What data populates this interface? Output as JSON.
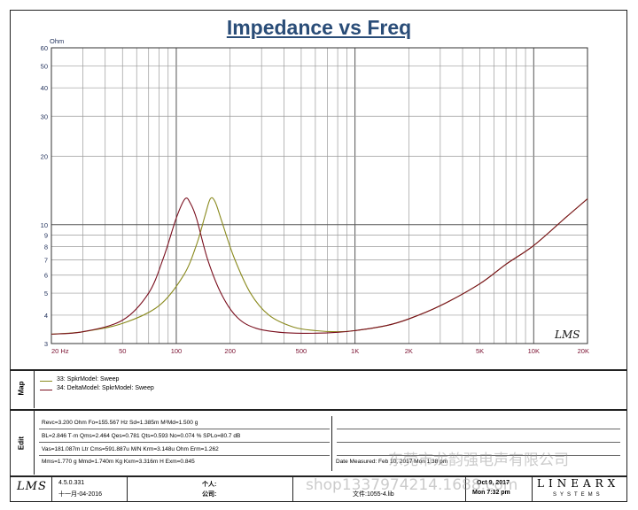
{
  "chart_data": {
    "type": "line",
    "title": "Impedance vs Freq",
    "ylabel_unit": "Ohm",
    "x_scale": "log",
    "y_scale": "log",
    "xlim": [
      20,
      20000
    ],
    "ylim": [
      3,
      60
    ],
    "x_ticks": [
      {
        "v": 20,
        "t": "20 Hz"
      },
      {
        "v": 50,
        "t": "50"
      },
      {
        "v": 100,
        "t": "100"
      },
      {
        "v": 200,
        "t": "200"
      },
      {
        "v": 500,
        "t": "500"
      },
      {
        "v": 1000,
        "t": "1K"
      },
      {
        "v": 2000,
        "t": "2K"
      },
      {
        "v": 5000,
        "t": "5K"
      },
      {
        "v": 10000,
        "t": "10K"
      },
      {
        "v": 20000,
        "t": "20K"
      }
    ],
    "y_ticks": [
      {
        "v": 60,
        "t": "60"
      },
      {
        "v": 50,
        "t": "50"
      },
      {
        "v": 40,
        "t": "40"
      },
      {
        "v": 30,
        "t": "30"
      },
      {
        "v": 20,
        "t": "20"
      },
      {
        "v": 10,
        "t": "10"
      },
      {
        "v": 9,
        "t": "9"
      },
      {
        "v": 8,
        "t": "8"
      },
      {
        "v": 7,
        "t": "7"
      },
      {
        "v": 6,
        "t": "6"
      },
      {
        "v": 5,
        "t": "5"
      },
      {
        "v": 4,
        "t": "4"
      },
      {
        "v": 3,
        "t": "3"
      }
    ],
    "grid": true,
    "series": [
      {
        "name": "33: SpkrModel: Sweep",
        "color": "#8a8a1e",
        "x": [
          20,
          30,
          50,
          80,
          110,
          130,
          145,
          155,
          165,
          180,
          210,
          260,
          330,
          450,
          600,
          800,
          1000,
          1500,
          2000,
          3000,
          5000,
          7000,
          10000,
          15000,
          20000
        ],
        "y": [
          3.3,
          3.38,
          3.68,
          4.4,
          6.0,
          8.2,
          11.0,
          13.0,
          12.6,
          10.3,
          7.2,
          5.0,
          4.0,
          3.55,
          3.42,
          3.38,
          3.42,
          3.6,
          3.85,
          4.4,
          5.5,
          6.7,
          8.1,
          10.7,
          13.0
        ]
      },
      {
        "name": "34: DeltaModel: SpkrModel: Sweep",
        "color": "#7a0f1e",
        "x": [
          20,
          30,
          50,
          70,
          85,
          100,
          112,
          120,
          130,
          150,
          180,
          220,
          280,
          400,
          600,
          800,
          1000,
          1500,
          2000,
          3000,
          5000,
          7000,
          10000,
          15000,
          20000
        ],
        "y": [
          3.3,
          3.38,
          3.8,
          5.0,
          7.2,
          10.7,
          13.0,
          12.4,
          10.6,
          7.0,
          4.9,
          3.9,
          3.5,
          3.35,
          3.33,
          3.36,
          3.42,
          3.6,
          3.85,
          4.4,
          5.5,
          6.7,
          8.1,
          10.7,
          13.0
        ]
      }
    ]
  },
  "watermark_plot": "LMS",
  "map": {
    "label": "Map",
    "items": [
      {
        "text": "33: SpkrModel: Sweep",
        "color": "#8a8a1e"
      },
      {
        "text": "34: DeltaModel: SpkrModel: Sweep",
        "color": "#7a0f1e"
      }
    ]
  },
  "params": {
    "label": "Edit",
    "line1": "Revc=3.200 Ohm  Fo=155.567 Hz  Sd=1.385m M²Md=1.500 g",
    "line2": "BL=2.846 T·m  Qms=2.464  Qes=0.781  Qts=0.593  No=0.074 %  SPLo=80.7 dB",
    "line3": "Vas=181.087m Ltr  Cms=591.887u M/N  Krm=3.148u Ohm  Erm=1.262",
    "line4": "Mms=1.770 g  Mmd=1.740m Kg  Kxm=3.316m H  Exm=0.845",
    "date_measured": "Date Measured: Feb 10, 2017  Mon  1:38 pm"
  },
  "footer": {
    "logo": "LMS",
    "version": "4.5.0.331",
    "date": "十一月-04-2016",
    "person_label": "个人:",
    "company_label": "公司:",
    "file_label": "文件:1055-4.lib",
    "date_right": "Oct 9, 2017",
    "time_right": "Mon  7:32 pm",
    "brand": "LINEARX",
    "brand_sub": "SYSTEMS"
  },
  "watermarks": [
    "东莞市龙韵强电声有限公司",
    "shop1337974214.1688.com"
  ]
}
